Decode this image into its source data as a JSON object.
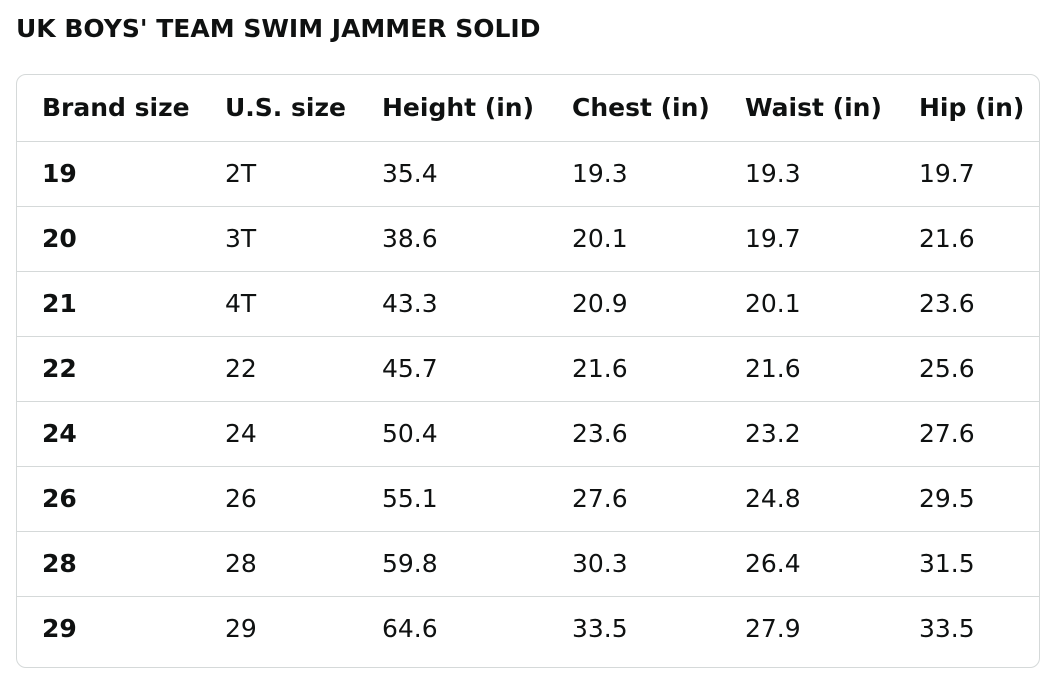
{
  "title": "UK BOYS' TEAM SWIM JAMMER SOLID",
  "table": {
    "headers": [
      "Brand size",
      "U.S. size",
      "Height (in)",
      "Chest (in)",
      "Waist (in)",
      "Hip (in)"
    ],
    "rows": [
      [
        "19",
        "2T",
        "35.4",
        "19.3",
        "19.3",
        "19.7"
      ],
      [
        "20",
        "3T",
        "38.6",
        "20.1",
        "19.7",
        "21.6"
      ],
      [
        "21",
        "4T",
        "43.3",
        "20.9",
        "20.1",
        "23.6"
      ],
      [
        "22",
        "22",
        "45.7",
        "21.6",
        "21.6",
        "25.6"
      ],
      [
        "24",
        "24",
        "50.4",
        "23.6",
        "23.2",
        "27.6"
      ],
      [
        "26",
        "26",
        "55.1",
        "27.6",
        "24.8",
        "29.5"
      ],
      [
        "28",
        "28",
        "59.8",
        "30.3",
        "26.4",
        "31.5"
      ],
      [
        "29",
        "29",
        "64.6",
        "33.5",
        "27.9",
        "33.5"
      ]
    ]
  }
}
